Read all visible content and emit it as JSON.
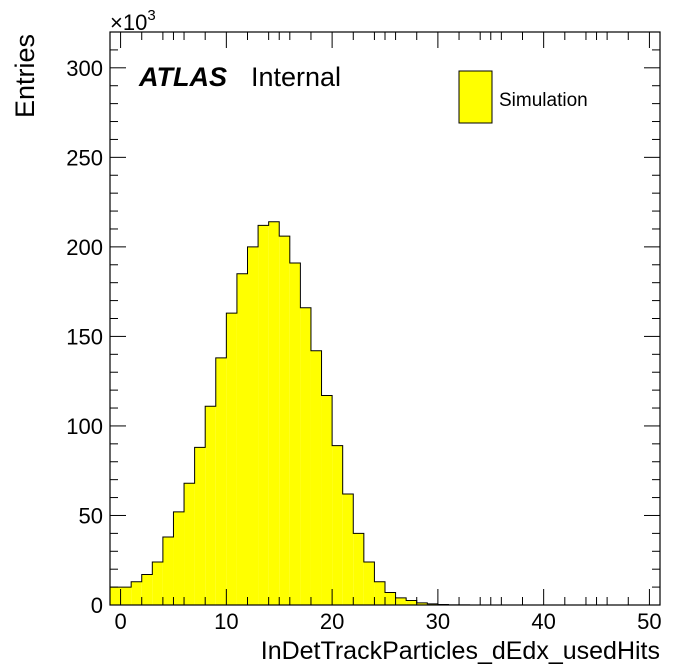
{
  "chart_data": {
    "type": "bar",
    "histogram": true,
    "xlabel": "InDetTrackParticles_dEdx_usedHits",
    "ylabel": "Entries",
    "y_multiplier_label": "×10",
    "y_multiplier_exponent": "3",
    "xlim": [
      -1,
      51
    ],
    "ylim": [
      0,
      320
    ],
    "x_major_ticks": [
      0,
      10,
      20,
      30,
      40,
      50
    ],
    "y_major_ticks": [
      0,
      50,
      100,
      150,
      200,
      250,
      300
    ],
    "atlas_label": "ATLAS",
    "atlas_sublabel": "Internal",
    "legend_position": "top-right",
    "series": [
      {
        "name": "Simulation",
        "fill_color": "#ffff00",
        "line_color": "#000000",
        "bin_edges": [
          -1,
          0,
          1,
          2,
          3,
          4,
          5,
          6,
          7,
          8,
          9,
          10,
          11,
          12,
          13,
          14,
          15,
          16,
          17,
          18,
          19,
          20,
          21,
          22,
          23,
          24,
          25,
          26,
          27,
          28,
          29,
          30,
          31,
          32,
          33,
          34,
          35,
          36,
          37,
          38,
          39,
          40,
          41,
          42,
          43,
          44,
          45,
          46,
          47,
          48,
          49,
          50,
          51
        ],
        "values": [
          10,
          10,
          13,
          17,
          24,
          38,
          52,
          68,
          88,
          111,
          138,
          163,
          185,
          200,
          212,
          214,
          206,
          191,
          166,
          142,
          117,
          89,
          62,
          40,
          24,
          13,
          7,
          4,
          2.5,
          1.2,
          0.6,
          0.3,
          0.1,
          0.05,
          0,
          0,
          0,
          0,
          0,
          0,
          0,
          0,
          0,
          0,
          0,
          0,
          0,
          0,
          0,
          0,
          0,
          0
        ]
      }
    ]
  }
}
